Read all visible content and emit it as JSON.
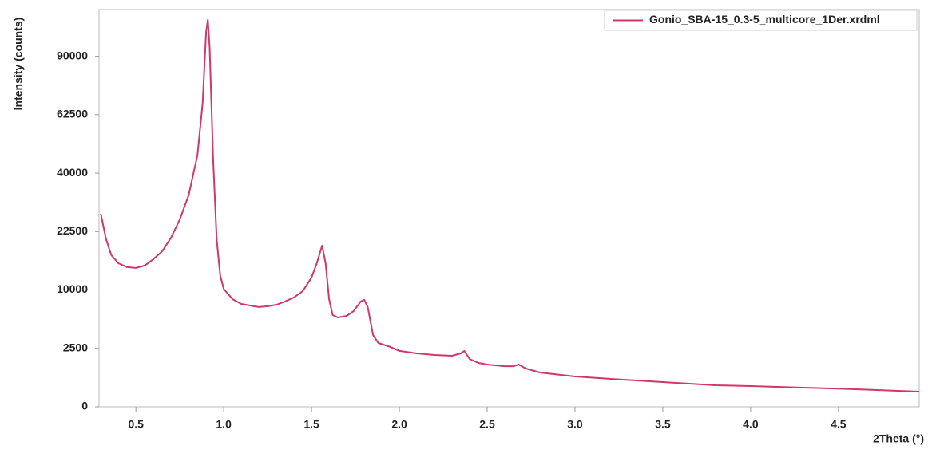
{
  "chart_data": {
    "type": "line",
    "x_label": "2Theta (°)",
    "y_label": "Intensity (counts)",
    "yscale": "sqrt",
    "xlim": [
      0.29,
      4.96
    ],
    "ylim": [
      0,
      115600
    ],
    "xticks": [
      0.5,
      {
        "value": 1,
        "label": "1.0"
      },
      1.5,
      {
        "value": 2,
        "label": "2.0"
      },
      2.5,
      {
        "value": 3,
        "label": "3.0"
      },
      3.5,
      {
        "value": 4,
        "label": "4.0"
      },
      4.5
    ],
    "yticks": [
      0,
      2500,
      10000,
      22500,
      40000,
      62500,
      90000
    ],
    "legend": "top-right",
    "x": [
      0.3,
      0.33,
      0.36,
      0.4,
      0.45,
      0.5,
      0.55,
      0.6,
      0.65,
      0.7,
      0.75,
      0.8,
      0.85,
      0.88,
      0.9,
      0.91,
      0.92,
      0.94,
      0.96,
      0.98,
      1.0,
      1.05,
      1.1,
      1.15,
      1.2,
      1.25,
      1.3,
      1.35,
      1.4,
      1.45,
      1.5,
      1.53,
      1.56,
      1.58,
      1.6,
      1.62,
      1.65,
      1.7,
      1.74,
      1.78,
      1.8,
      1.82,
      1.85,
      1.88,
      1.95,
      2.0,
      2.1,
      2.2,
      2.3,
      2.35,
      2.37,
      2.4,
      2.45,
      2.5,
      2.6,
      2.65,
      2.68,
      2.72,
      2.8,
      3.0,
      3.2,
      3.5,
      3.8,
      4.0,
      4.3,
      4.6,
      4.96
    ],
    "series": [
      {
        "name": "Gonio_SBA-15_0.3-5_multicore_1Der.xrdml",
        "color": "#d0376b",
        "values": [
          27300,
          20570,
          16850,
          15110,
          14290,
          14130,
          14620,
          15970,
          17740,
          20970,
          25770,
          32760,
          46300,
          67380,
          103000,
          109760,
          94500,
          44820,
          20570,
          12700,
          10200,
          8500,
          7760,
          7520,
          7290,
          7410,
          7640,
          8130,
          8760,
          9800,
          12250,
          15110,
          19040,
          15110,
          8500,
          6170,
          5850,
          6060,
          6720,
          8130,
          8380,
          7290,
          3780,
          2990,
          2620,
          2290,
          2090,
          1970,
          1910,
          2090,
          2290,
          1680,
          1410,
          1310,
          1210,
          1210,
          1310,
          1075,
          863,
          674,
          571,
          448,
          340,
          315,
          269,
          226,
          168
        ]
      }
    ]
  }
}
